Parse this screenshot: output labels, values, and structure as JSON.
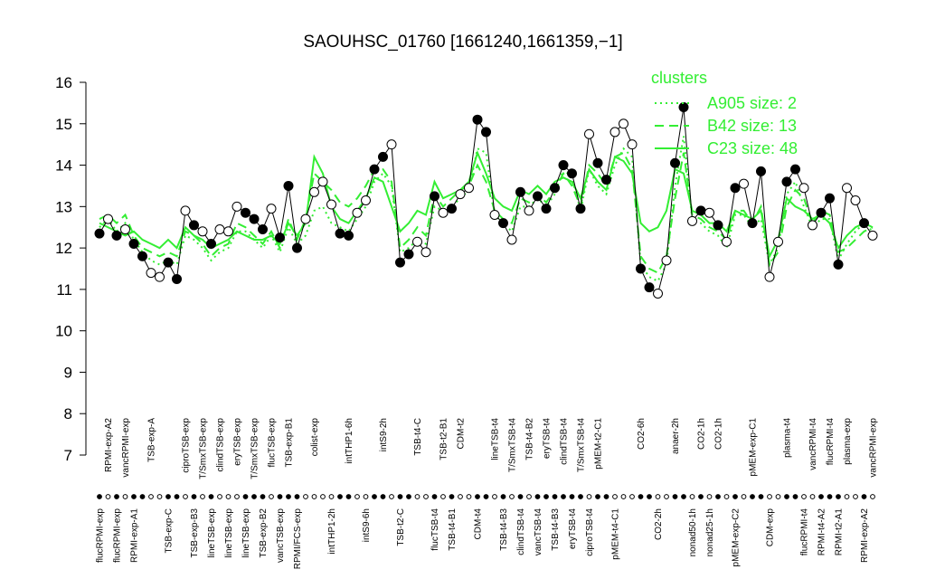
{
  "chart_data": {
    "type": "line",
    "title": "SAOUHSC_01760 [1661240,1661359,−1]",
    "categories": [
      "flucRPMI-exp",
      "RPMI-exp-A2",
      "flucRPMI-exp",
      "vancRPMI-exp",
      "RPMI-exp-A1",
      null,
      "TSB-exp-A",
      null,
      "TSB-exp-C",
      null,
      "ciproTSB-exp",
      "TSB-exp-B3",
      "T/SmxTSB-exp",
      "lineTSB-exp",
      "clindTSB-exp",
      "lineTSB-exp",
      "eryTSB-exp",
      "lineTSB-exp",
      "T/SmxTSB-exp",
      "TSB-exp-B2",
      "flucTSB-exp",
      "vancTSB-exp",
      "TSB-exp-B1",
      "RPMI/FCS-exp",
      null,
      "colist-exp",
      null,
      "intTHP1-2h",
      null,
      "intTHP1-6h",
      null,
      "intS9-6h",
      null,
      "intS9-2h",
      null,
      "TSB-t2-C",
      null,
      "TSB-t4-C",
      null,
      "flucTSB-t4",
      "TSB-t2-B1",
      "TSB-t4-B1",
      "CDM-t2",
      null,
      "CDM-t4",
      null,
      "lineTSB-t4",
      "TSB-t4-B3",
      "T/SmxTSB-t4",
      "clindTSB-t4",
      "TSB-t4-B2",
      "vancTSB-t4",
      "eryTSB-t4",
      "TSB-t4-B3",
      "clindTSB-t4",
      "eryTSB-t4",
      "T/SmxTSB-t4",
      "ciproTSB-t4",
      "pMEM-t2-C1",
      null,
      "pMEM-t4-C1",
      null,
      null,
      "CO2-6h",
      null,
      "CO2-2h",
      null,
      "anaer-2h",
      null,
      "nonad50-1h",
      "CO2-1h",
      "nonad25-1h",
      "CO2-1h",
      null,
      "pMEM-exp-C2",
      null,
      "pMEM-exp-C1",
      null,
      "CDM-exp",
      null,
      "plasma-t4",
      null,
      "flucRPMI-t4",
      "vancRPMI-t4",
      "RPMI-t4-A2",
      "flucRPMI-t4",
      "RPMI-t2-A1",
      "plasma-exp",
      null,
      "RPMI-exp-A2",
      "vancRPMI-exp"
    ],
    "values": [
      12.35,
      12.7,
      12.3,
      12.45,
      12.1,
      11.8,
      11.4,
      11.3,
      11.65,
      11.25,
      12.9,
      12.55,
      12.4,
      12.1,
      12.45,
      12.4,
      13.0,
      12.85,
      12.7,
      12.45,
      12.95,
      12.25,
      13.5,
      12.0,
      12.7,
      13.35,
      13.6,
      13.05,
      12.35,
      12.3,
      12.85,
      13.15,
      13.9,
      14.2,
      14.5,
      11.65,
      11.85,
      12.15,
      11.9,
      13.25,
      12.85,
      12.95,
      13.3,
      13.45,
      15.1,
      14.8,
      12.8,
      12.6,
      12.2,
      13.35,
      12.9,
      13.25,
      12.95,
      13.45,
      14.0,
      13.8,
      12.95,
      14.75,
      14.05,
      13.65,
      14.8,
      15.0,
      14.5,
      11.5,
      11.05,
      10.9,
      11.7,
      14.05,
      15.4,
      12.65,
      12.9,
      12.85,
      12.55,
      12.15,
      13.45,
      13.55,
      12.6,
      13.85,
      11.3,
      12.15,
      13.6,
      13.9,
      13.45,
      12.55,
      12.85,
      13.2,
      11.6,
      13.45,
      13.15,
      12.6,
      12.3
    ],
    "filled": [
      true,
      false,
      true,
      false,
      true,
      true,
      false,
      false,
      true,
      true,
      false,
      true,
      false,
      true,
      false,
      false,
      false,
      true,
      true,
      true,
      false,
      true,
      true,
      true,
      false,
      false,
      false,
      false,
      true,
      true,
      false,
      false,
      true,
      true,
      false,
      true,
      true,
      false,
      false,
      true,
      false,
      true,
      false,
      false,
      true,
      true,
      false,
      true,
      false,
      true,
      false,
      true,
      true,
      true,
      true,
      true,
      true,
      false,
      true,
      true,
      false,
      false,
      false,
      true,
      true,
      false,
      false,
      true,
      true,
      false,
      true,
      false,
      true,
      false,
      true,
      false,
      true,
      true,
      false,
      false,
      true,
      true,
      false,
      false,
      true,
      true,
      true,
      false,
      false,
      true,
      false
    ],
    "legend_title": "clusters",
    "legend": "top-right",
    "series": [
      {
        "name": "A905 size: 2",
        "color": "#33ee33",
        "linestyle": "dotted",
        "values": [
          12.5,
          12.7,
          12.4,
          12.6,
          12.2,
          11.9,
          11.7,
          11.6,
          11.7,
          11.6,
          12.3,
          12.2,
          12.0,
          11.7,
          11.9,
          12.0,
          12.4,
          12.4,
          12.2,
          12.0,
          12.3,
          11.9,
          12.5,
          12.1,
          12.3,
          12.9,
          13.0,
          12.6,
          12.5,
          12.4,
          12.7,
          13.0,
          13.6,
          13.8,
          13.5,
          11.9,
          12.0,
          12.2,
          12.1,
          13.0,
          12.9,
          13.0,
          13.2,
          13.4,
          14.4,
          14.3,
          12.8,
          12.6,
          12.4,
          13.0,
          13.0,
          13.2,
          13.0,
          13.3,
          13.9,
          13.7,
          12.9,
          13.9,
          13.5,
          13.3,
          14.0,
          14.4,
          14.2,
          11.6,
          11.3,
          11.2,
          11.6,
          13.5,
          14.7,
          12.7,
          12.6,
          12.4,
          12.3,
          12.0,
          12.8,
          12.8,
          12.5,
          12.7,
          11.6,
          12.0,
          13.3,
          13.6,
          13.0,
          12.5,
          12.7,
          12.7,
          11.7,
          12.1,
          12.4,
          12.6,
          12.4
        ]
      },
      {
        "name": "B42 size: 13",
        "color": "#33ee33",
        "linestyle": "dashed",
        "values": [
          12.7,
          12.8,
          12.6,
          12.8,
          12.3,
          12.0,
          11.9,
          11.8,
          11.9,
          11.8,
          12.4,
          12.3,
          12.1,
          11.8,
          12.0,
          12.1,
          12.6,
          12.5,
          12.3,
          12.1,
          12.4,
          12.0,
          12.7,
          12.2,
          12.7,
          13.8,
          13.6,
          13.4,
          13.1,
          13.0,
          13.2,
          13.5,
          13.9,
          13.9,
          13.6,
          12.0,
          12.2,
          12.5,
          12.3,
          13.3,
          13.0,
          13.2,
          13.4,
          13.5,
          14.0,
          13.6,
          12.9,
          12.7,
          12.6,
          13.2,
          13.1,
          13.3,
          13.1,
          13.4,
          13.8,
          13.5,
          13.0,
          14.0,
          13.8,
          13.5,
          14.2,
          14.3,
          13.9,
          11.8,
          11.5,
          11.4,
          11.8,
          13.2,
          14.3,
          12.8,
          12.7,
          12.5,
          12.4,
          12.2,
          12.9,
          12.9,
          12.6,
          13.0,
          11.6,
          11.9,
          13.0,
          13.4,
          13.2,
          12.6,
          12.9,
          12.8,
          11.9,
          12.0,
          12.2,
          12.4,
          12.5
        ]
      },
      {
        "name": "C23 size: 48",
        "color": "#33ee33",
        "linestyle": "solid",
        "values": [
          12.6,
          12.5,
          12.4,
          12.3,
          12.4,
          12.2,
          12.1,
          12.0,
          12.2,
          12.0,
          12.5,
          12.3,
          12.2,
          12.0,
          12.1,
          12.2,
          12.4,
          12.3,
          12.2,
          12.2,
          12.3,
          12.1,
          12.6,
          12.3,
          12.6,
          14.2,
          13.8,
          13.0,
          12.7,
          12.6,
          12.9,
          13.2,
          13.7,
          13.6,
          13.0,
          12.4,
          12.6,
          12.9,
          12.8,
          13.6,
          13.2,
          13.3,
          13.4,
          13.6,
          14.3,
          13.8,
          13.2,
          13.0,
          12.9,
          13.4,
          13.3,
          13.5,
          13.3,
          13.6,
          13.7,
          13.6,
          13.2,
          13.9,
          13.6,
          13.4,
          14.2,
          14.1,
          13.8,
          12.6,
          12.4,
          12.5,
          12.9,
          13.9,
          13.8,
          12.9,
          12.8,
          12.6,
          12.6,
          12.4,
          12.9,
          12.8,
          12.7,
          12.9,
          11.8,
          12.2,
          13.2,
          13.0,
          12.9,
          12.7,
          12.8,
          12.6,
          12.0,
          12.3,
          12.5,
          12.6,
          12.5
        ]
      }
    ],
    "ylim": [
      7,
      16
    ],
    "yticks": [
      7,
      8,
      9,
      10,
      11,
      12,
      13,
      14,
      15,
      16
    ]
  }
}
